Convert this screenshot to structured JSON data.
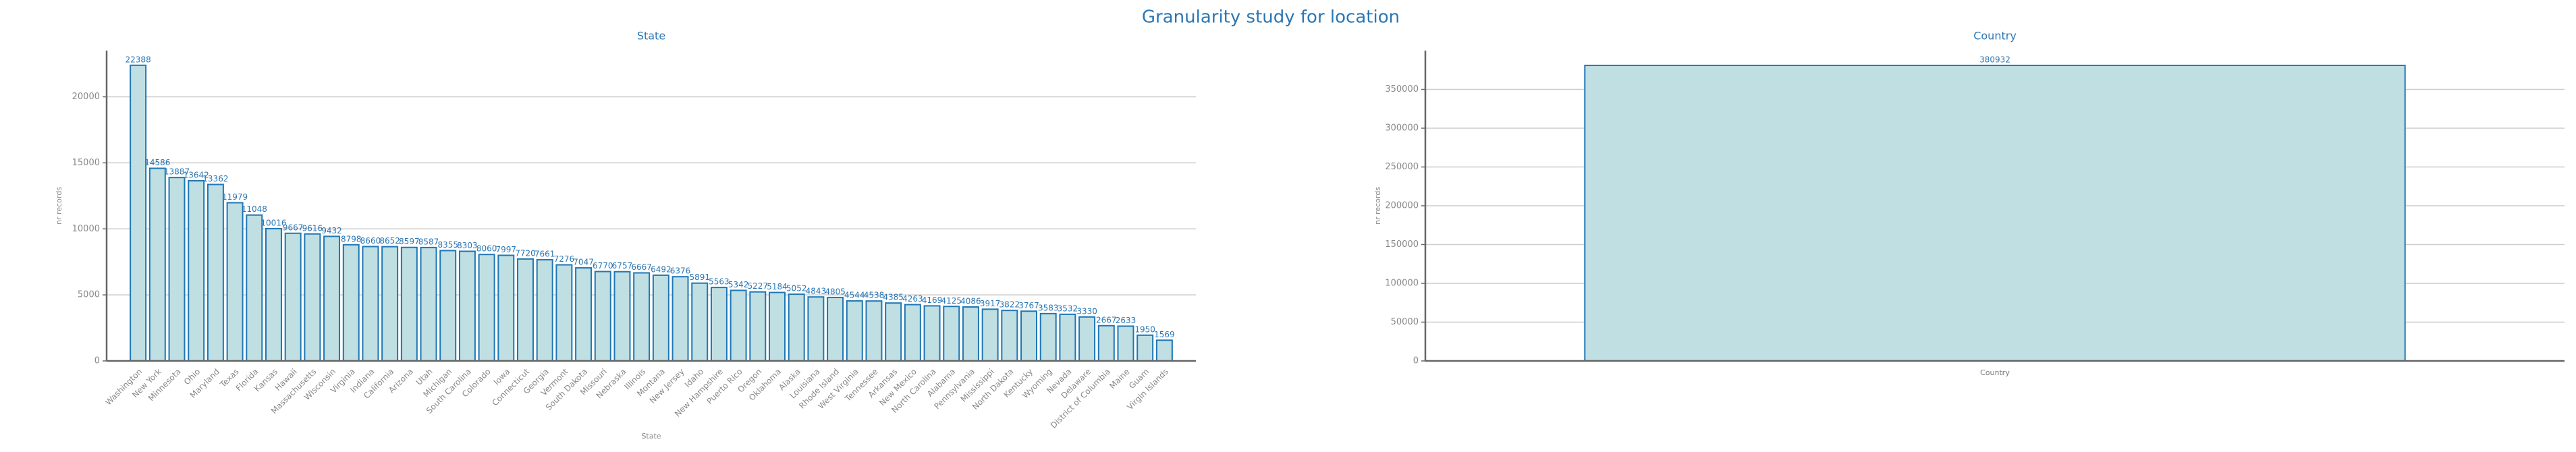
{
  "title": "Granularity study for location",
  "chart_data": [
    {
      "type": "bar",
      "title": "State",
      "xlabel": "State",
      "ylabel": "nr records",
      "color": "#bfdfe3",
      "edgecolor": "#1f77b4",
      "grid": true,
      "categories": [
        "Washington",
        "New York",
        "Minnesota",
        "Ohio",
        "Maryland",
        "Texas",
        "Florida",
        "Kansas",
        "Hawaii",
        "Massachusetts",
        "Wisconsin",
        "Virginia",
        "Indiana",
        "California",
        "Arizona",
        "Utah",
        "Michigan",
        "South Carolina",
        "Colorado",
        "Iowa",
        "Connecticut",
        "Georgia",
        "Vermont",
        "South Dakota",
        "Missouri",
        "Nebraska",
        "Illinois",
        "Montana",
        "New Jersey",
        "Idaho",
        "New Hampshire",
        "Puerto Rico",
        "Oregon",
        "Oklahoma",
        "Alaska",
        "Louisiana",
        "Rhode Island",
        "West Virginia",
        "Tennessee",
        "Arkansas",
        "New Mexico",
        "North Carolina",
        "Alabama",
        "Pennsylvania",
        "Mississippi",
        "North Dakota",
        "Kentucky",
        "Wyoming",
        "Nevada",
        "Delaware",
        "District of Columbia",
        "Maine",
        "Guam",
        "Virgin Islands"
      ],
      "values": [
        22388,
        14586,
        13887,
        13642,
        13362,
        11979,
        11048,
        10016,
        9667,
        9616,
        9432,
        8798,
        8660,
        8652,
        8597,
        8587,
        8355,
        8303,
        8060,
        7997,
        7720,
        7661,
        7276,
        7047,
        6770,
        6757,
        6667,
        6492,
        6376,
        5891,
        5563,
        5342,
        5227,
        5184,
        5052,
        4843,
        4805,
        4544,
        4538,
        4385,
        4263,
        4169,
        4125,
        4086,
        3917,
        3822,
        3767,
        3583,
        3532,
        3330,
        2667,
        2633,
        1950,
        1569
      ],
      "ylim": [
        0,
        23500
      ],
      "yticks": [
        0,
        5000,
        10000,
        15000,
        20000
      ]
    },
    {
      "type": "bar",
      "title": "Country",
      "xlabel": "Country",
      "ylabel": "nr records",
      "color": "#bfdfe3",
      "edgecolor": "#1f77b4",
      "grid": true,
      "categories": [
        "Country"
      ],
      "values": [
        380932
      ],
      "ylim": [
        0,
        400000
      ],
      "yticks": [
        0,
        50000,
        100000,
        150000,
        200000,
        250000,
        300000,
        350000
      ]
    }
  ]
}
